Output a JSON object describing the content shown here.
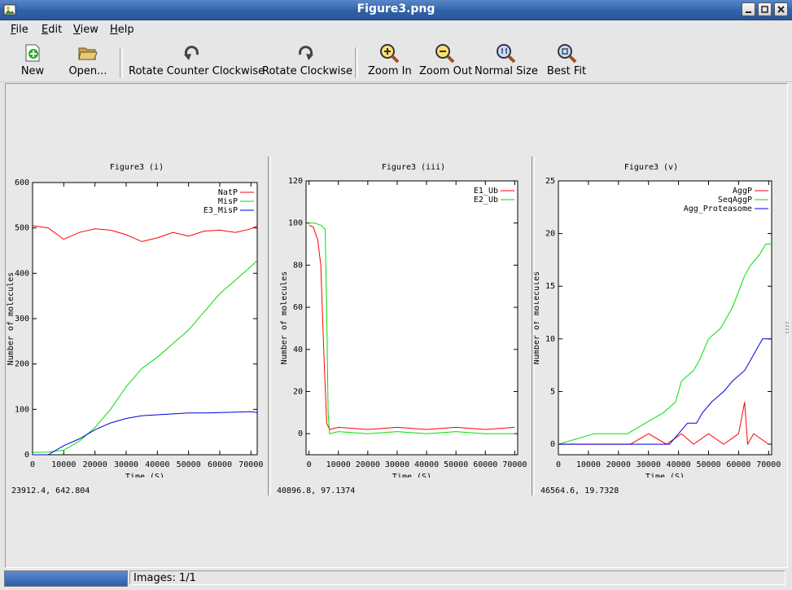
{
  "window": {
    "title": "Figure3.png"
  },
  "menu": [
    {
      "label": "File",
      "key": "F",
      "rest": "ile"
    },
    {
      "label": "Edit",
      "key": "E",
      "rest": "dit"
    },
    {
      "label": "View",
      "key": "V",
      "rest": "iew"
    },
    {
      "label": "Help",
      "key": "H",
      "rest": "elp"
    }
  ],
  "toolbar": {
    "new": "New",
    "open": "Open...",
    "rotate_ccw": "Rotate Counter Clockwise",
    "rotate_cw": "Rotate Clockwise",
    "zoom_in": "Zoom In",
    "zoom_out": "Zoom Out",
    "normal_size": "Normal Size",
    "best_fit": "Best Fit"
  },
  "status": {
    "text": "Images: 1/1",
    "progress": 1.0
  },
  "colors": {
    "red": "#ff0000",
    "green": "#00e000",
    "blue": "#0000e0",
    "titlebar": "#3a6cb4"
  },
  "chart_data": [
    {
      "type": "line",
      "title": "Figure3 (i)",
      "xlabel": "Time (S)",
      "ylabel": "Number of molecules",
      "xlim": [
        0,
        72000
      ],
      "ylim": [
        0,
        600
      ],
      "xticks": [
        "0",
        "10000",
        "20000",
        "30000",
        "40000",
        "50000",
        "60000",
        "70000"
      ],
      "yticks": [
        "0",
        "100",
        "200",
        "300",
        "400",
        "500",
        "600"
      ],
      "coord_readout": "23912.4,  642.804",
      "legend_position": "top-right",
      "series": [
        {
          "name": "NatP",
          "color": "#ff0000",
          "x": [
            0,
            5000,
            10000,
            15000,
            20000,
            25000,
            30000,
            35000,
            40000,
            45000,
            50000,
            55000,
            60000,
            65000,
            70000,
            72000
          ],
          "y": [
            505,
            500,
            475,
            490,
            498,
            495,
            485,
            470,
            478,
            490,
            482,
            493,
            495,
            490,
            498,
            505
          ]
        },
        {
          "name": "MisP",
          "color": "#00e000",
          "x": [
            0,
            5000,
            10000,
            15000,
            20000,
            25000,
            30000,
            35000,
            40000,
            45000,
            50000,
            55000,
            60000,
            65000,
            70000,
            72000
          ],
          "y": [
            5,
            6,
            10,
            30,
            60,
            100,
            150,
            190,
            215,
            245,
            275,
            315,
            355,
            385,
            415,
            428
          ]
        },
        {
          "name": "E3_MisP",
          "color": "#0000e0",
          "x": [
            0,
            5000,
            10000,
            15000,
            20000,
            25000,
            30000,
            35000,
            40000,
            45000,
            50000,
            55000,
            60000,
            65000,
            70000,
            72000
          ],
          "y": [
            0,
            0,
            20,
            35,
            55,
            70,
            80,
            86,
            88,
            90,
            92,
            92,
            93,
            94,
            95,
            93
          ]
        }
      ]
    },
    {
      "type": "line",
      "title": "Figure3 (iii)",
      "xlabel": "Time (S)",
      "ylabel": "Number of molecules",
      "xlim": [
        -1000,
        71000
      ],
      "ylim": [
        -10,
        120
      ],
      "xticks": [
        "0",
        "10000",
        "20000",
        "30000",
        "40000",
        "50000",
        "60000",
        "70000"
      ],
      "yticks": [
        "0",
        "20",
        "40",
        "60",
        "80",
        "100",
        "120"
      ],
      "coord_readout": "40896.8,  97.1374",
      "legend_position": "top-right",
      "series": [
        {
          "name": "E1_Ub",
          "color": "#ff0000",
          "x": [
            0,
            1500,
            3000,
            4000,
            5000,
            6000,
            7000,
            10000,
            20000,
            30000,
            40000,
            50000,
            60000,
            70000
          ],
          "y": [
            99,
            98,
            92,
            80,
            40,
            5,
            2,
            3,
            2,
            3,
            2,
            3,
            2,
            3
          ]
        },
        {
          "name": "E2_Ub",
          "color": "#00e000",
          "x": [
            0,
            2000,
            4000,
            5500,
            6000,
            6500,
            7000,
            10000,
            20000,
            30000,
            40000,
            50000,
            60000,
            70000
          ],
          "y": [
            100,
            100,
            99,
            97,
            60,
            10,
            0,
            1,
            0,
            1,
            0,
            1,
            0,
            0
          ]
        }
      ]
    },
    {
      "type": "line",
      "title": "Figure3 (v)",
      "xlabel": "Time (S)",
      "ylabel": "Number of molecules",
      "xlim": [
        0,
        71000
      ],
      "ylim": [
        -1,
        25
      ],
      "xticks": [
        "0",
        "10000",
        "20000",
        "30000",
        "40000",
        "50000",
        "60000",
        "70000"
      ],
      "yticks": [
        "0",
        "5",
        "10",
        "15",
        "20",
        "25"
      ],
      "coord_readout": "46564.6,  19.7328",
      "legend_position": "top-right",
      "series": [
        {
          "name": "AggP",
          "color": "#ff0000",
          "x": [
            0,
            24000,
            30000,
            36000,
            41000,
            45000,
            50000,
            55000,
            60000,
            62000,
            63000,
            65000,
            70000
          ],
          "y": [
            0,
            0,
            1,
            0,
            1,
            0,
            1,
            0,
            1,
            4,
            0,
            1,
            0
          ]
        },
        {
          "name": "SeqAggP",
          "color": "#00e000",
          "x": [
            0,
            12000,
            23000,
            29000,
            35000,
            39000,
            41000,
            45000,
            47000,
            50000,
            54000,
            58000,
            62000,
            64000,
            67000,
            69000,
            71000
          ],
          "y": [
            0,
            1,
            1,
            2,
            3,
            4,
            6,
            7,
            8,
            10,
            11,
            13,
            16,
            17,
            18,
            19,
            19
          ]
        },
        {
          "name": "Agg_Proteasome",
          "color": "#0000e0",
          "x": [
            0,
            37000,
            40000,
            43000,
            46000,
            48000,
            51000,
            55000,
            58000,
            62000,
            64000,
            66000,
            68000,
            71000
          ],
          "y": [
            0,
            0,
            1,
            2,
            2,
            3,
            4,
            5,
            6,
            7,
            8,
            9,
            10,
            10
          ]
        }
      ]
    }
  ]
}
